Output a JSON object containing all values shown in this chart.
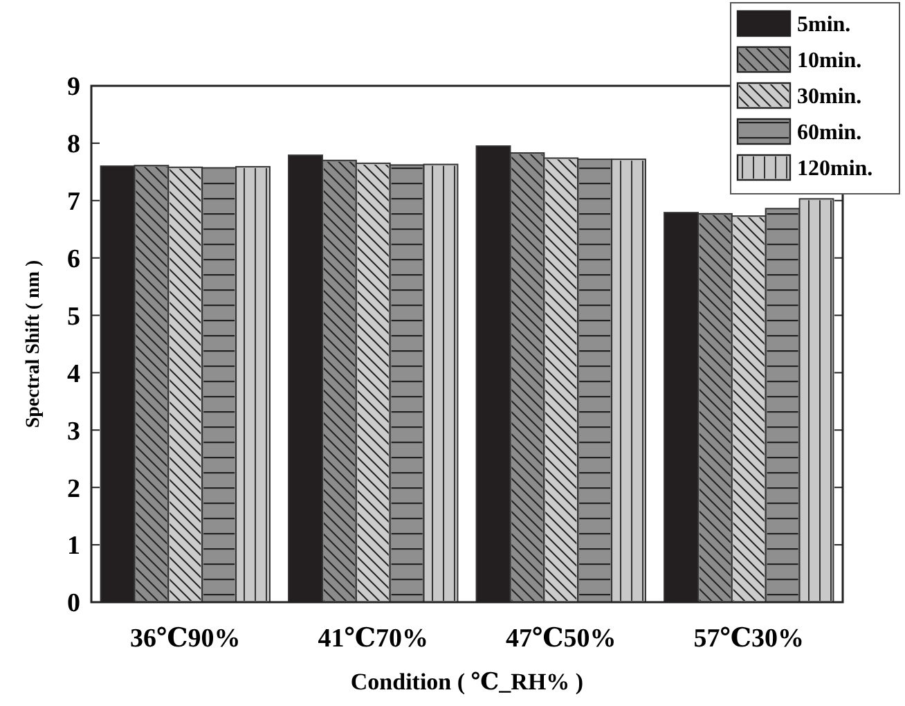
{
  "chart_data": {
    "type": "bar",
    "xlabel": "Condition ( ℃_RH% )",
    "ylabel": "Spectral Shift ( nm )",
    "categories": [
      "36℃90%",
      "41℃70%",
      "47℃50%",
      "57℃30%"
    ],
    "series": [
      {
        "name": "5min.",
        "color": "#231f20",
        "values": [
          7.6,
          7.79,
          7.95,
          6.79
        ]
      },
      {
        "name": "10min.",
        "color": "#8c8c8c",
        "values": [
          7.61,
          7.7,
          7.83,
          6.77
        ]
      },
      {
        "name": "30min.",
        "color": "#cccccc",
        "values": [
          7.58,
          7.65,
          7.74,
          6.73
        ]
      },
      {
        "name": "60min.",
        "color": "#8f8f8f",
        "values": [
          7.57,
          7.62,
          7.72,
          6.86
        ]
      },
      {
        "name": "120min.",
        "color": "#c8c8c8",
        "values": [
          7.59,
          7.63,
          7.72,
          7.03
        ]
      }
    ],
    "ylim": [
      0,
      9
    ],
    "yticks": [
      0,
      1,
      2,
      3,
      4,
      5,
      6,
      7,
      8,
      9
    ],
    "grid": false,
    "legend": "top right"
  }
}
